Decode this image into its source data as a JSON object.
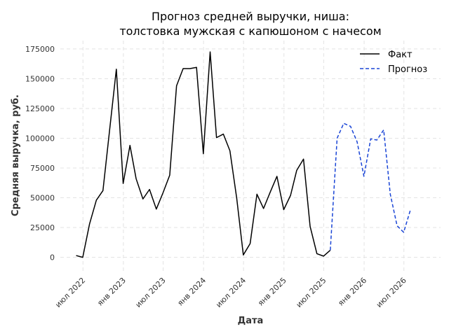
{
  "chart_data": {
    "type": "line",
    "title": [
      "Прогноз средней выручки, ниша:",
      "толстовка мужская с капюшоном с начесом"
    ],
    "xlabel": "Дата",
    "ylabel": "Средняя выручка, руб.",
    "ylim": [
      -12000,
      182000
    ],
    "xlim": [
      "2022-03-20",
      "2026-12-15"
    ],
    "x_ticks": [
      {
        "date": "2022-07-01",
        "label": "июл 2022"
      },
      {
        "date": "2023-01-01",
        "label": "янв 2023"
      },
      {
        "date": "2023-07-01",
        "label": "июл 2023"
      },
      {
        "date": "2024-01-01",
        "label": "янв 2024"
      },
      {
        "date": "2024-07-01",
        "label": "июл 2024"
      },
      {
        "date": "2025-01-01",
        "label": "янв 2025"
      },
      {
        "date": "2025-07-01",
        "label": "июл 2025"
      },
      {
        "date": "2026-01-01",
        "label": "янв 2026"
      },
      {
        "date": "2026-07-01",
        "label": "июл 2026"
      }
    ],
    "y_ticks": [
      0,
      25000,
      50000,
      75000,
      100000,
      125000,
      150000,
      175000
    ],
    "grid": true,
    "legend_position": "top-right",
    "series": [
      {
        "name": "Факт",
        "style": "solid",
        "color": "#000000",
        "points": [
          [
            "2022-05-31",
            1500
          ],
          [
            "2022-06-30",
            0
          ],
          [
            "2022-07-31",
            28000
          ],
          [
            "2022-08-31",
            48000
          ],
          [
            "2022-09-30",
            56000
          ],
          [
            "2022-10-31",
            108000
          ],
          [
            "2022-11-30",
            158000
          ],
          [
            "2022-12-31",
            62000
          ],
          [
            "2023-01-31",
            94000
          ],
          [
            "2023-02-28",
            66000
          ],
          [
            "2023-03-31",
            49000
          ],
          [
            "2023-04-30",
            57000
          ],
          [
            "2023-05-31",
            40500
          ],
          [
            "2023-06-30",
            54000
          ],
          [
            "2023-07-31",
            69000
          ],
          [
            "2023-08-31",
            144000
          ],
          [
            "2023-09-30",
            158500
          ],
          [
            "2023-10-31",
            158500
          ],
          [
            "2023-11-30",
            159500
          ],
          [
            "2023-12-31",
            87000
          ],
          [
            "2024-01-31",
            172500
          ],
          [
            "2024-02-29",
            100500
          ],
          [
            "2024-03-31",
            103500
          ],
          [
            "2024-04-30",
            89500
          ],
          [
            "2024-05-31",
            49500
          ],
          [
            "2024-06-30",
            2000
          ],
          [
            "2024-07-31",
            11500
          ],
          [
            "2024-08-31",
            53000
          ],
          [
            "2024-09-30",
            41000
          ],
          [
            "2024-10-31",
            55000
          ],
          [
            "2024-11-30",
            68000
          ],
          [
            "2024-12-31",
            40000
          ],
          [
            "2025-01-31",
            52000
          ],
          [
            "2025-02-28",
            73000
          ],
          [
            "2025-03-31",
            82500
          ],
          [
            "2025-04-30",
            26000
          ],
          [
            "2025-05-31",
            3000
          ],
          [
            "2025-06-30",
            1000
          ],
          [
            "2025-07-31",
            6000
          ]
        ]
      },
      {
        "name": "Прогноз",
        "style": "dashed",
        "color": "#1a45d6",
        "points": [
          [
            "2025-07-31",
            6000
          ],
          [
            "2025-08-31",
            100000
          ],
          [
            "2025-09-30",
            112500
          ],
          [
            "2025-10-31",
            110000
          ],
          [
            "2025-11-30",
            97000
          ],
          [
            "2025-12-31",
            68000
          ],
          [
            "2026-01-31",
            99500
          ],
          [
            "2026-02-28",
            98500
          ],
          [
            "2026-03-31",
            107000
          ],
          [
            "2026-04-30",
            53000
          ],
          [
            "2026-05-31",
            26500
          ],
          [
            "2026-06-30",
            21000
          ],
          [
            "2026-07-31",
            40000
          ]
        ]
      }
    ]
  }
}
